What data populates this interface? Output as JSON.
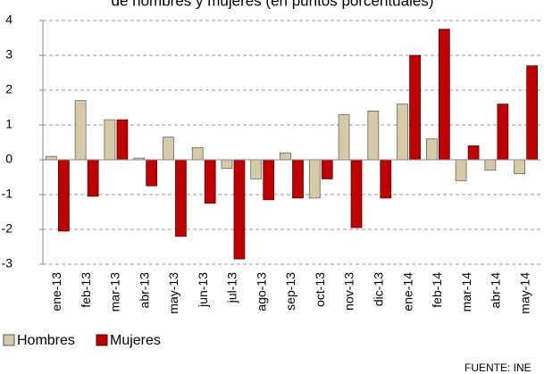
{
  "chart_data": {
    "type": "bar",
    "title": "de hombres y mujeres (en puntos porcentuales)",
    "source": "FUENTE: INE",
    "categories": [
      "ene-13",
      "feb-13",
      "mar-13",
      "abr-13",
      "may-13",
      "jun-13",
      "jul-13",
      "ago-13",
      "sep-13",
      "oct-13",
      "nov-13",
      "dic-13",
      "ene-14",
      "feb-14",
      "mar-14",
      "abr-14",
      "may-14"
    ],
    "series": [
      {
        "name": "Hombres",
        "color": "#d4caa5",
        "values": [
          0.1,
          1.7,
          1.15,
          0.05,
          0.65,
          0.35,
          -0.25,
          -0.55,
          0.2,
          -1.1,
          1.3,
          1.4,
          1.6,
          0.6,
          -0.6,
          -0.3,
          -0.4
        ]
      },
      {
        "name": "Mujeres",
        "color": "#c00000",
        "values": [
          -2.05,
          -1.05,
          1.15,
          -0.75,
          -2.2,
          -1.25,
          -2.85,
          -1.15,
          -1.1,
          -0.55,
          -1.95,
          -1.1,
          3.0,
          3.75,
          0.4,
          1.6,
          2.7
        ]
      }
    ],
    "ylim": [
      -3,
      4
    ],
    "yticks": [
      -3,
      -2,
      -1,
      0,
      1,
      2,
      3,
      4
    ],
    "grid": true,
    "legend": "bottom-left"
  }
}
